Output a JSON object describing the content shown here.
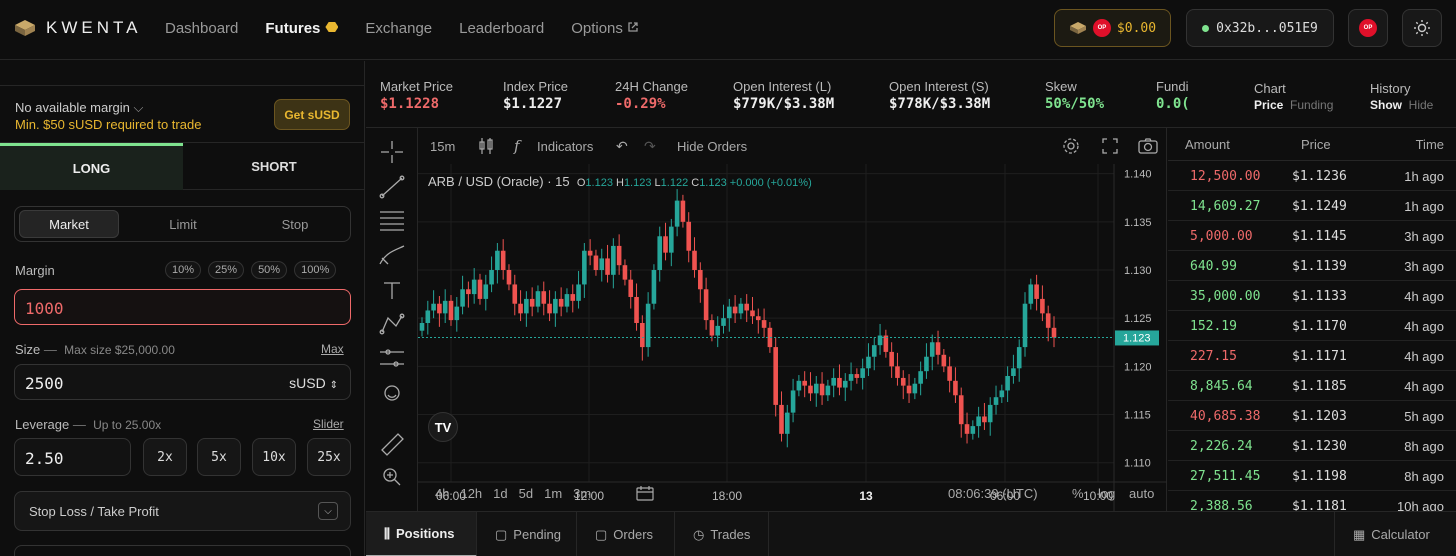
{
  "header": {
    "logo_text": "KWENTA",
    "nav": [
      {
        "label": "Dashboard"
      },
      {
        "label": "Futures"
      },
      {
        "label": "Exchange"
      },
      {
        "label": "Leaderboard"
      },
      {
        "label": "Options"
      }
    ],
    "balance": "$0.00",
    "wallet": "0x32b...051E9",
    "op_label": "OP"
  },
  "left": {
    "margin_status": "No available margin",
    "margin_warning": "Min. $50 sUSD required to trade",
    "get_susd": "Get sUSD",
    "side_tabs": [
      "LONG",
      "SHORT"
    ],
    "order_types": [
      "Market",
      "Limit",
      "Stop"
    ],
    "margin_label": "Margin",
    "pct_buttons": [
      "10%",
      "25%",
      "50%",
      "100%"
    ],
    "margin_value": "1000",
    "size_label": "Size",
    "size_sep": "—",
    "max_size": "Max size $25,000.00",
    "max_link": "Max",
    "size_value": "2500",
    "size_unit": "sUSD",
    "leverage_label": "Leverage",
    "leverage_max": "Up to 25.00x",
    "slider_link": "Slider",
    "leverage_value": "2.50",
    "lev_buttons": [
      "2x",
      "5x",
      "10x",
      "25x"
    ],
    "sltp": "Stop Loss / Take Profit"
  },
  "stats": [
    {
      "label": "Market Price",
      "value": "$1.1228",
      "color": "#ef6a6a"
    },
    {
      "label": "Index Price",
      "value": "$1.1227",
      "color": "#eeeeee"
    },
    {
      "label": "24H Change",
      "value": "-0.29%",
      "color": "#ef6a6a"
    },
    {
      "label": "Open Interest (L)",
      "value": "$779K/$3.38M",
      "color": "#eeeeee"
    },
    {
      "label": "Open Interest (S)",
      "value": "$778K/$3.38M",
      "color": "#eeeeee"
    },
    {
      "label": "Skew",
      "value": "50%/50%",
      "color": "#7fe38f"
    },
    {
      "label": "Fundi",
      "value": "0.0(",
      "color": "#7fe38f"
    }
  ],
  "chart_toggle": {
    "label": "Chart",
    "options": [
      "Price",
      "Funding"
    ]
  },
  "history_toggle": {
    "label": "History",
    "options": [
      "Show",
      "Hide"
    ]
  },
  "toolbar": {
    "interval": "15m",
    "indicators": "Indicators",
    "hide_orders": "Hide Orders"
  },
  "chart_data": {
    "type": "candlestick",
    "symbol": "ARB / USD (Oracle)",
    "interval": "15",
    "ohlc": {
      "o": "1.123",
      "h": "1.123",
      "l": "1.122",
      "c": "1.123",
      "change": "+0.000 (+0.01%)"
    },
    "ylim": [
      1.108,
      1.141
    ],
    "y_ticks": [
      "1.140",
      "1.135",
      "1.130",
      "1.125",
      "1.120",
      "1.115",
      "1.110"
    ],
    "x_ticks": [
      "06:00",
      "12:00",
      "18:00",
      "13",
      "06:00",
      "10:00"
    ],
    "last_price": "1.123",
    "closes": [
      1.1245,
      1.1258,
      1.1265,
      1.1255,
      1.1268,
      1.1248,
      1.1262,
      1.128,
      1.1275,
      1.129,
      1.127,
      1.1285,
      1.13,
      1.132,
      1.13,
      1.1285,
      1.1265,
      1.1255,
      1.127,
      1.1262,
      1.1278,
      1.1265,
      1.1255,
      1.127,
      1.1262,
      1.1275,
      1.1268,
      1.1285,
      1.132,
      1.1315,
      1.13,
      1.1312,
      1.1295,
      1.1325,
      1.1305,
      1.129,
      1.1272,
      1.1245,
      1.122,
      1.1265,
      1.13,
      1.1335,
      1.1318,
      1.1345,
      1.1372,
      1.135,
      1.132,
      1.13,
      1.128,
      1.1248,
      1.1232,
      1.1242,
      1.125,
      1.1262,
      1.1255,
      1.1265,
      1.1258,
      1.1252,
      1.1248,
      1.124,
      1.122,
      1.116,
      1.113,
      1.1152,
      1.1175,
      1.1185,
      1.118,
      1.1172,
      1.1182,
      1.117,
      1.118,
      1.1188,
      1.1178,
      1.1185,
      1.1192,
      1.1188,
      1.1198,
      1.121,
      1.1222,
      1.1232,
      1.1215,
      1.12,
      1.1188,
      1.118,
      1.1172,
      1.1182,
      1.1195,
      1.121,
      1.1225,
      1.1212,
      1.12,
      1.1185,
      1.117,
      1.114,
      1.113,
      1.1138,
      1.1148,
      1.1142,
      1.116,
      1.1168,
      1.1175,
      1.119,
      1.1198,
      1.122,
      1.1265,
      1.1285,
      1.127,
      1.1255,
      1.124,
      1.123
    ],
    "volume_label": "%",
    "ranges": [
      "4h",
      "12h",
      "1d",
      "5d",
      "1m",
      "3m"
    ],
    "clock": "08:06:39 (UTC)",
    "scale_opts": [
      "%",
      "log",
      "auto"
    ]
  },
  "trades": {
    "headers": [
      "Amount",
      "Price",
      "Time"
    ],
    "rows": [
      {
        "amount": "12,500.00",
        "price": "$1.1236",
        "time": "1h ago",
        "side": "sell"
      },
      {
        "amount": "14,609.27",
        "price": "$1.1249",
        "time": "1h ago",
        "side": "buy"
      },
      {
        "amount": "5,000.00",
        "price": "$1.1145",
        "time": "3h ago",
        "side": "sell"
      },
      {
        "amount": "640.99",
        "price": "$1.1139",
        "time": "3h ago",
        "side": "buy"
      },
      {
        "amount": "35,000.00",
        "price": "$1.1133",
        "time": "4h ago",
        "side": "buy"
      },
      {
        "amount": "152.19",
        "price": "$1.1170",
        "time": "4h ago",
        "side": "buy"
      },
      {
        "amount": "227.15",
        "price": "$1.1171",
        "time": "4h ago",
        "side": "sell"
      },
      {
        "amount": "8,845.64",
        "price": "$1.1185",
        "time": "4h ago",
        "side": "buy"
      },
      {
        "amount": "40,685.38",
        "price": "$1.1203",
        "time": "5h ago",
        "side": "sell"
      },
      {
        "amount": "2,226.24",
        "price": "$1.1230",
        "time": "8h ago",
        "side": "buy"
      },
      {
        "amount": "27,511.45",
        "price": "$1.1198",
        "time": "8h ago",
        "side": "buy"
      },
      {
        "amount": "2,388.56",
        "price": "$1.1181",
        "time": "10h ago",
        "side": "buy"
      }
    ]
  },
  "bottom_tabs": [
    "Positions",
    "Pending",
    "Orders",
    "Trades"
  ],
  "calculator": "Calculator",
  "colors": {
    "up": "#26a69a",
    "down": "#ef5350",
    "accent": "#e9b730",
    "buy": "#7fe38f",
    "sell": "#ef6a6a"
  }
}
